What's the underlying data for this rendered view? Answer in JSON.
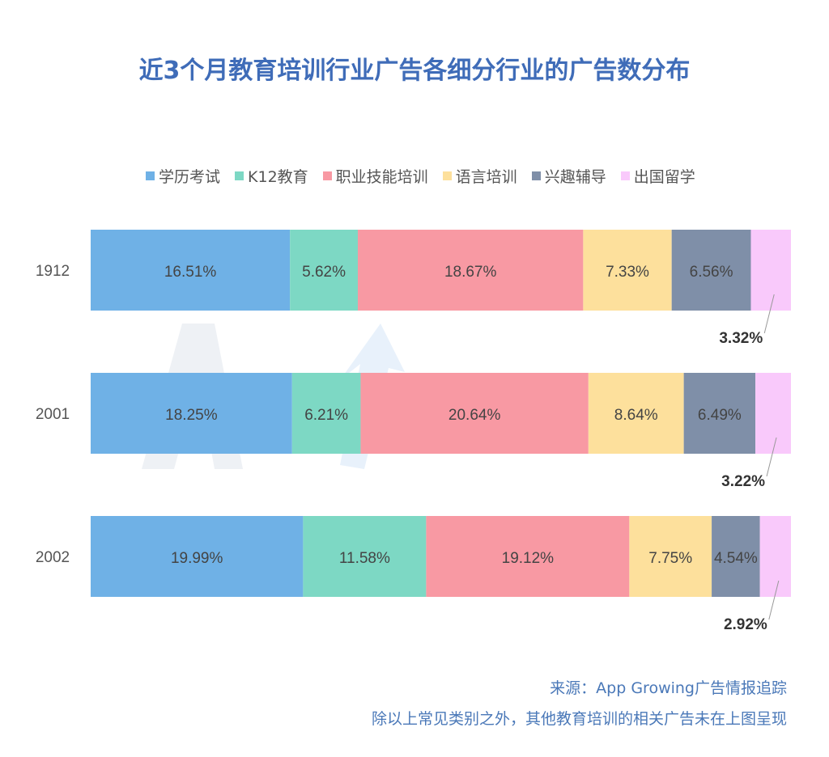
{
  "chart_data": {
    "type": "bar",
    "orientation": "horizontal-stacked-normalized",
    "title": "近3个月教育培训行业广告各细分行业的广告数分布",
    "categories": [
      "1912",
      "2001",
      "2002"
    ],
    "series": [
      {
        "name": "学历考试",
        "color": "#6fb1e6",
        "values": [
          16.51,
          18.25,
          19.99
        ]
      },
      {
        "name": "K12教育",
        "color": "#7dd8c4",
        "values": [
          5.62,
          6.21,
          11.58
        ]
      },
      {
        "name": "职业技能培训",
        "color": "#f899a3",
        "values": [
          18.67,
          20.64,
          19.12
        ]
      },
      {
        "name": "语言培训",
        "color": "#fde09c",
        "values": [
          7.33,
          8.64,
          7.75
        ]
      },
      {
        "name": "兴趣辅导",
        "color": "#7f8fa8",
        "values": [
          6.56,
          6.49,
          4.54
        ]
      },
      {
        "name": "出国留学",
        "color": "#f9c9fb",
        "values": [
          3.32,
          3.22,
          2.92
        ]
      }
    ],
    "value_suffix": "%",
    "legend_position": "top"
  },
  "watermark": "AppGrowing",
  "notes": {
    "source": "来源：App Growing广告情报追踪",
    "disclaimer": "除以上常见类别之外，其他教育培训的相关广告未在上图呈现"
  }
}
